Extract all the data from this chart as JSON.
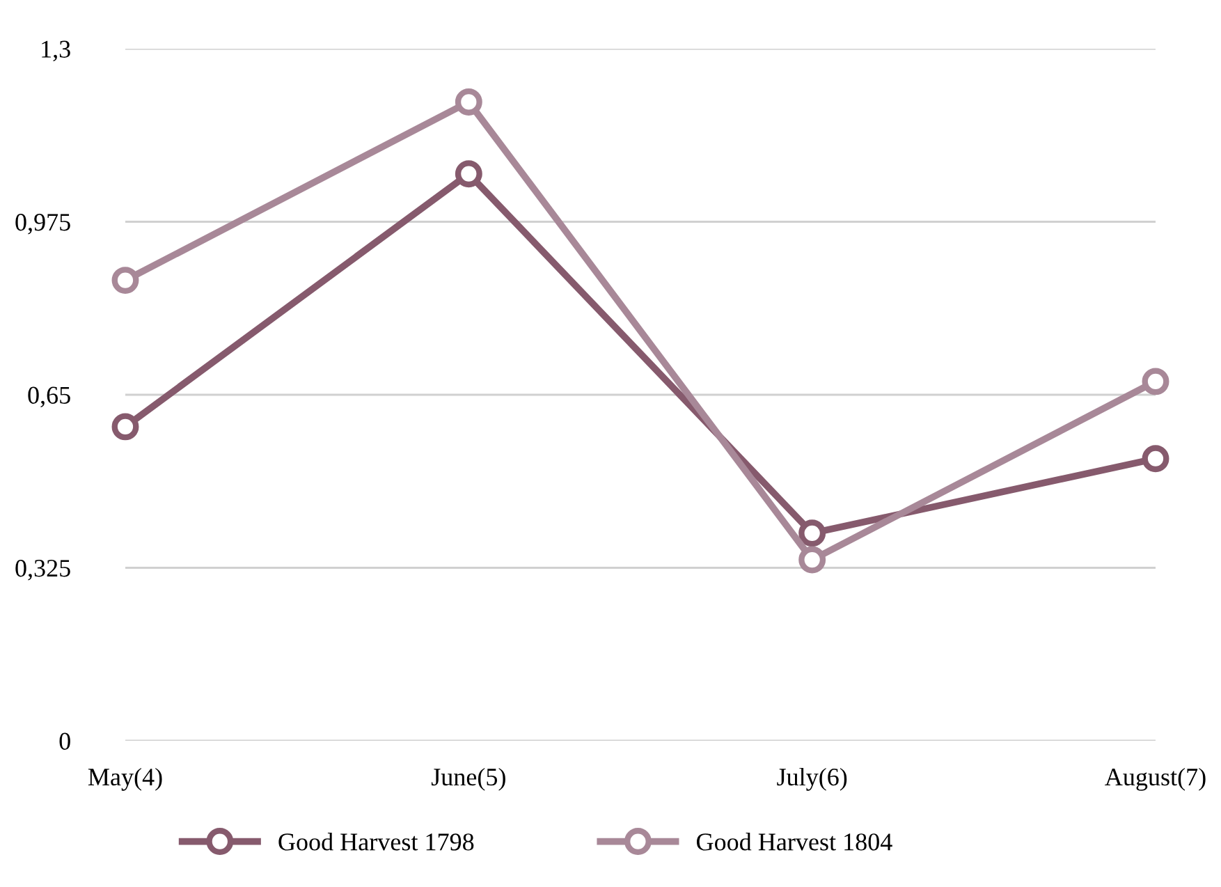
{
  "chart_data": {
    "type": "line",
    "categories": [
      "May(4)",
      "June(5)",
      "July(6)",
      "August(7)"
    ],
    "series": [
      {
        "name": "Good Harvest 1798",
        "color": "#865a6d",
        "values": [
          0.59,
          1.065,
          0.39,
          0.53
        ]
      },
      {
        "name": "Good Harvest 1804",
        "color": "#a88898",
        "values": [
          0.865,
          1.2,
          0.34,
          0.675
        ]
      }
    ],
    "ylim": [
      0,
      1.3
    ],
    "yticks": [
      {
        "value": 0,
        "label": "0"
      },
      {
        "value": 0.325,
        "label": "0,325"
      },
      {
        "value": 0.65,
        "label": "0,65"
      },
      {
        "value": 0.975,
        "label": "0,975"
      },
      {
        "value": 1.3,
        "label": "1,3"
      }
    ],
    "grid": "y",
    "legend": "bottom",
    "marker": "circle",
    "line_style": "solid"
  }
}
